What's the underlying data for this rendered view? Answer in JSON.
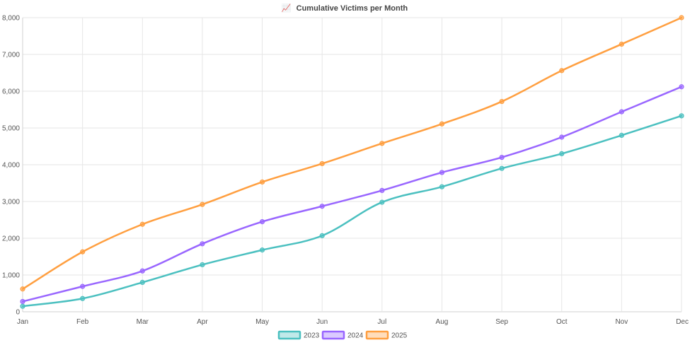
{
  "chart_data": {
    "type": "line",
    "title": "Cumulative Victims per Month",
    "title_icon": "chart-increasing-emoji",
    "title_icon_glyph": "📈",
    "xlabel": "",
    "ylabel": "",
    "categories": [
      "Jan",
      "Feb",
      "Mar",
      "Apr",
      "May",
      "Jun",
      "Jul",
      "Aug",
      "Sep",
      "Oct",
      "Nov",
      "Dec"
    ],
    "ylim": [
      0,
      8000
    ],
    "yticks": [
      0,
      1000,
      2000,
      3000,
      4000,
      5000,
      6000,
      7000,
      8000
    ],
    "ytick_labels": [
      "0",
      "1,000",
      "2,000",
      "3,000",
      "4,000",
      "5,000",
      "6,000",
      "7,000",
      "8,000"
    ],
    "grid": true,
    "legend_position": "bottom-center",
    "series": [
      {
        "name": "2023",
        "color": "#4bc0c0",
        "values": [
          150,
          360,
          800,
          1280,
          1680,
          2070,
          2980,
          3400,
          3900,
          4300,
          4800,
          5330
        ]
      },
      {
        "name": "2024",
        "color": "#9966ff",
        "values": [
          280,
          690,
          1110,
          1850,
          2450,
          2870,
          3300,
          3790,
          4200,
          4750,
          5440,
          6120
        ]
      },
      {
        "name": "2025",
        "color": "#ff9f40",
        "values": [
          620,
          1630,
          2380,
          2920,
          3530,
          4030,
          4580,
          5110,
          5720,
          6560,
          7280,
          8000
        ]
      }
    ]
  }
}
